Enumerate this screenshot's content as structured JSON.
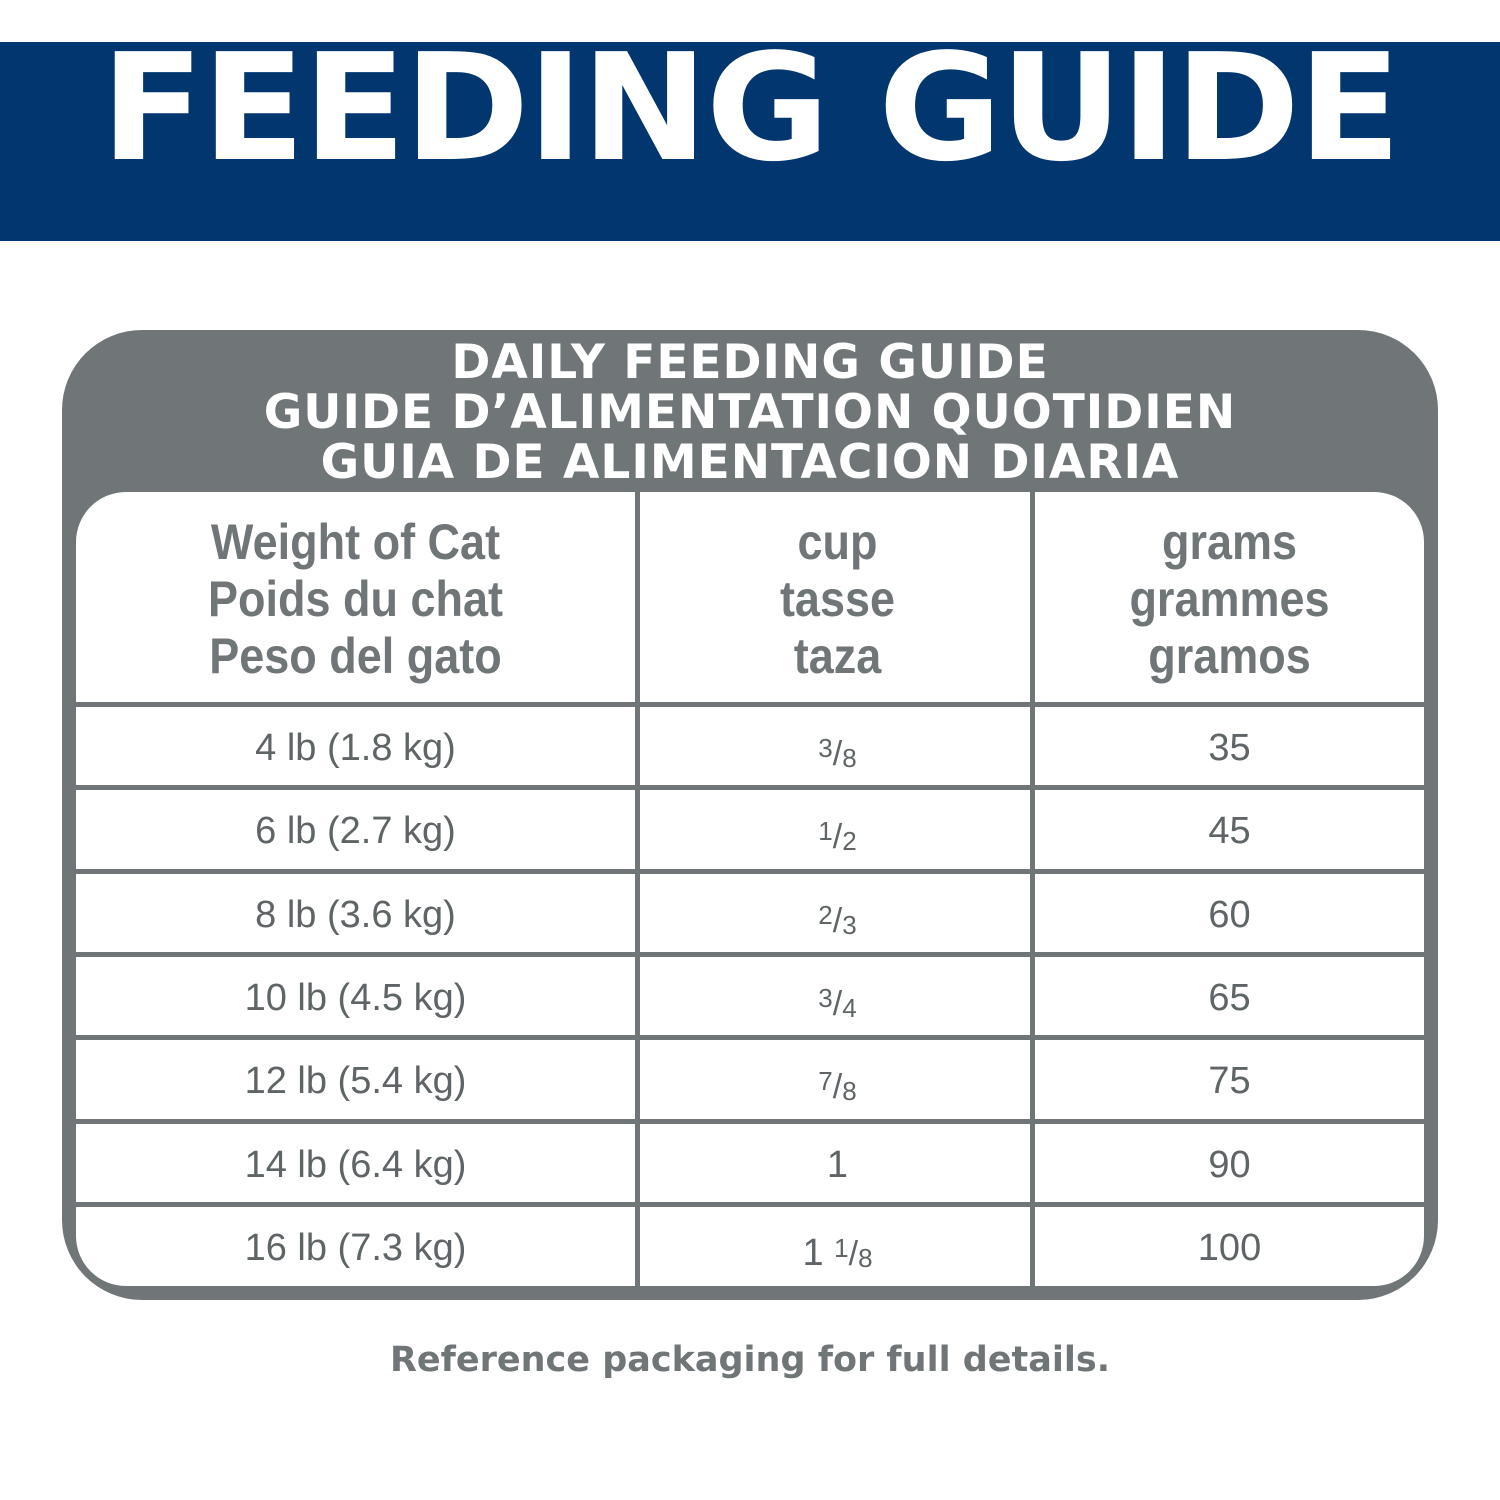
{
  "banner": {
    "title": "FEEDING GUIDE",
    "color": "#01366f"
  },
  "guide": {
    "title_lines": [
      "DAILY FEEDING GUIDE",
      "GUIDE D’ALIMENTATION QUOTIDIEN",
      "GUIA DE ALIMENTACION DIARIA"
    ],
    "color": "#707678"
  },
  "table": {
    "headers": [
      [
        "Weight of Cat",
        "Poids du chat",
        "Peso del gato"
      ],
      [
        "cup",
        "tasse",
        "taza"
      ],
      [
        "grams",
        "grammes",
        "gramos"
      ]
    ],
    "rows": [
      {
        "weight": "4 lb (1.8 kg)",
        "cup_whole": "",
        "cup_num": "3",
        "cup_den": "8",
        "grams": "35"
      },
      {
        "weight": "6 lb (2.7 kg)",
        "cup_whole": "",
        "cup_num": "1",
        "cup_den": "2",
        "grams": "45"
      },
      {
        "weight": "8 lb (3.6 kg)",
        "cup_whole": "",
        "cup_num": "2",
        "cup_den": "3",
        "grams": "60"
      },
      {
        "weight": "10 lb (4.5 kg)",
        "cup_whole": "",
        "cup_num": "3",
        "cup_den": "4",
        "grams": "65"
      },
      {
        "weight": "12 lb (5.4 kg)",
        "cup_whole": "",
        "cup_num": "7",
        "cup_den": "8",
        "grams": "75"
      },
      {
        "weight": "14 lb (6.4 kg)",
        "cup_whole": "1",
        "cup_num": "",
        "cup_den": "",
        "grams": "90"
      },
      {
        "weight": "16 lb (7.3 kg)",
        "cup_whole": "1",
        "cup_num": "1",
        "cup_den": "8",
        "grams": "100"
      }
    ]
  },
  "footer": {
    "note": "Reference packaging for full details."
  }
}
